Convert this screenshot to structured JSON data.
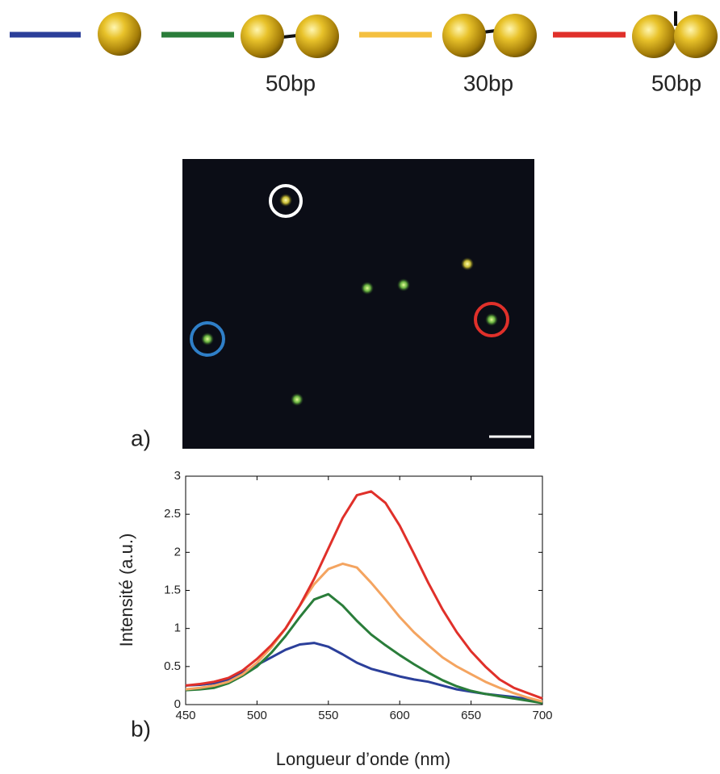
{
  "chart_data": {
    "type": "line",
    "annotations": [
      "50bp",
      "30bp",
      "50bp"
    ],
    "panel_labels": [
      "a)",
      "b)"
    ],
    "xlabel": "Longueur d’onde (nm)",
    "ylabel": "Intensité (a.u.)",
    "x": [
      450,
      460,
      470,
      480,
      490,
      500,
      510,
      520,
      530,
      540,
      550,
      560,
      570,
      580,
      590,
      600,
      610,
      620,
      630,
      640,
      650,
      660,
      670,
      680,
      690,
      700
    ],
    "series": [
      {
        "color": "#2b3f9a",
        "values": [
          0.25,
          0.26,
          0.28,
          0.33,
          0.42,
          0.52,
          0.62,
          0.72,
          0.79,
          0.81,
          0.76,
          0.66,
          0.55,
          0.47,
          0.42,
          0.37,
          0.33,
          0.3,
          0.25,
          0.2,
          0.17,
          0.14,
          0.12,
          0.1,
          0.07,
          0.03
        ]
      },
      {
        "color": "#2a7d3a",
        "values": [
          0.19,
          0.2,
          0.22,
          0.28,
          0.38,
          0.5,
          0.68,
          0.9,
          1.15,
          1.38,
          1.45,
          1.3,
          1.1,
          0.92,
          0.78,
          0.65,
          0.53,
          0.42,
          0.32,
          0.24,
          0.18,
          0.14,
          0.11,
          0.08,
          0.05,
          0.02
        ]
      },
      {
        "color": "#f4a460",
        "values": [
          0.2,
          0.22,
          0.25,
          0.3,
          0.4,
          0.55,
          0.75,
          1.0,
          1.3,
          1.58,
          1.78,
          1.85,
          1.8,
          1.6,
          1.38,
          1.15,
          0.95,
          0.78,
          0.62,
          0.5,
          0.4,
          0.3,
          0.22,
          0.15,
          0.09,
          0.04
        ]
      },
      {
        "color": "#e0302a",
        "values": [
          0.25,
          0.27,
          0.3,
          0.35,
          0.45,
          0.6,
          0.78,
          1.0,
          1.3,
          1.65,
          2.05,
          2.45,
          2.75,
          2.8,
          2.65,
          2.35,
          1.98,
          1.6,
          1.25,
          0.95,
          0.7,
          0.5,
          0.33,
          0.22,
          0.15,
          0.08
        ]
      }
    ],
    "xlim": [
      450,
      700
    ],
    "xticks": [
      450,
      500,
      550,
      600,
      650,
      700
    ],
    "ylim": [
      0,
      3
    ],
    "yticks": [
      0,
      0.5,
      1,
      1.5,
      2,
      2.5,
      3
    ]
  }
}
